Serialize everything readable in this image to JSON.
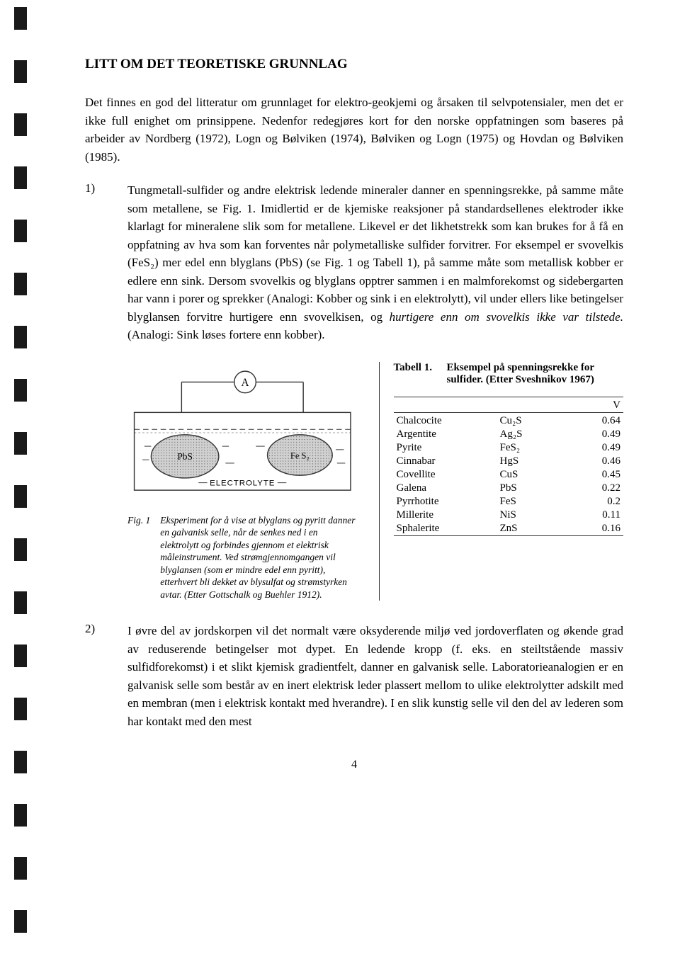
{
  "title": "LITT OM DET TEORETISKE GRUNNLAG",
  "intro": "Det finnes en god del litteratur om grunnlaget for elektro-geokjemi og årsaken til selvpotensialer, men det er ikke full enighet om prinsippene. Nedenfor redegjøres kort for den norske oppfatningen som baseres på arbeider av Nordberg (1972), Logn og Bølviken (1974), Bølviken og Logn (1975) og Hovdan og Bølviken (1985).",
  "para1_num": "1)",
  "para1_a": "Tungmetall-sulfider og andre elektrisk ledende mineraler danner en spenningsrekke, på samme måte som metallene, se Fig. 1. Imidlertid er de kjemiske reaksjoner på standardsellenes elektroder ikke klarlagt for mineralene slik som for metallene. Likevel er det likhetstrekk som kan brukes for å få en oppfatning av hva som kan forventes når polymetalliske sulfider forvitrer. For eksempel er svovelkis (FeS₂) mer edel enn blyglans (PbS) (se Fig. 1 og Tabell 1), på samme måte som metallisk kobber er edlere enn sink. Dersom svovelkis og blyglans opptrer sammen i en malmforekomst og sidebergarten har vann i porer og sprekker (Analogi: Kobber og sink i en elektrolytt), vil under ellers like betingelser blyglansen forvitre hurtigere enn svovelkisen, og ",
  "para1_i": "hurtigere enn om svovelkis ikke var tilstede.",
  "para1_b": " (Analogi: Sink løses fortere enn kobber).",
  "table": {
    "label": "Tabell 1.",
    "title": "Eksempel på spenningsrekke for sulfider. (Etter Sveshnikov 1967)",
    "vheader": "V",
    "rows": [
      {
        "name": "Chalcocite",
        "formula": "Cu₂S",
        "value": "0.64"
      },
      {
        "name": "Argentite",
        "formula": "Ag₂S",
        "value": "0.49"
      },
      {
        "name": "Pyrite",
        "formula": "FeS₂",
        "value": "0.49"
      },
      {
        "name": "Cinnabar",
        "formula": "HgS",
        "value": "0.46"
      },
      {
        "name": "Covellite",
        "formula": "CuS",
        "value": "0.45"
      },
      {
        "name": "Galena",
        "formula": "PbS",
        "value": "0.22"
      },
      {
        "name": "Pyrrhotite",
        "formula": "FeS",
        "value": "0.2"
      },
      {
        "name": "Millerite",
        "formula": "NiS",
        "value": "0.11"
      },
      {
        "name": "Sphalerite",
        "formula": "ZnS",
        "value": "0.16"
      }
    ]
  },
  "figure": {
    "label": "Fig. 1",
    "caption": "Eksperiment for å vise at blyglans og pyritt danner en galvanisk selle, når de senkes ned i en elektrolytt og forbindes gjennom et elektrisk måleinstrument. Ved strømgjennomgangen vil blyglansen (som er mindre edel enn pyritt), etterhvert bli dekket av blysulfat og strømstyrken avtar. (Etter Gottschalk og Buehler 1912).",
    "pbs_label": "PbS",
    "fes_label": "Fe S₂",
    "electrolyte_label": "ELECTROLYTE",
    "meter_label": "A"
  },
  "para2_num": "2)",
  "para2": "I øvre del av jordskorpen vil det normalt være oksyderende miljø ved jordoverflaten og økende grad av reduserende betingelser mot dypet. En ledende kropp (f. eks. en steiltstående massiv sulfidforekomst) i et slikt kjemisk gradientfelt, danner en galvanisk selle. Laboratorieanalogien er en galvanisk selle som består av en inert elektrisk leder plassert mellom to ulike elektrolytter adskilt med en membran (men i elektrisk kontakt med hverandre). I en slik kunstig selle vil den del av lederen som har kontakt med den mest",
  "page_num": "4"
}
